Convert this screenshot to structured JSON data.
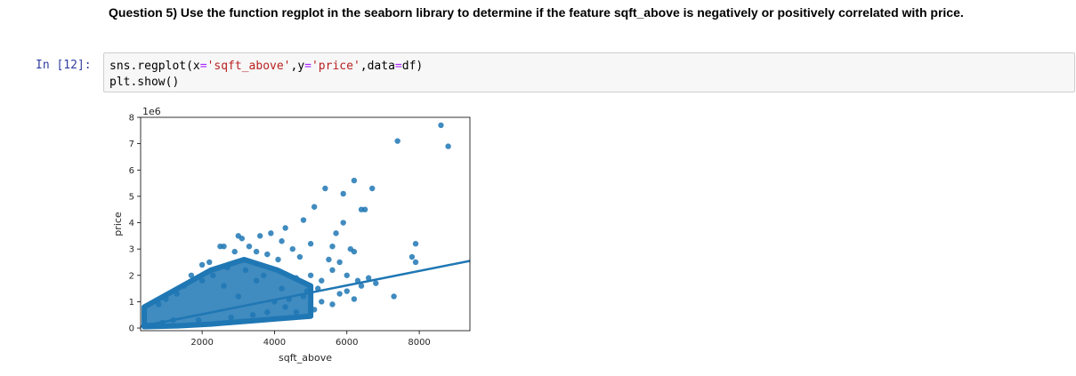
{
  "question": {
    "text": "Question 5) Use the function regplot in the seaborn library to determine if the feature sqft_above is negatively or positively correlated with price."
  },
  "cell": {
    "prompt": "In [12]:",
    "code_line1_parts": [
      "sns.regplot(x",
      "=",
      "'sqft_above'",
      ",y",
      "=",
      "'price'",
      ",data",
      "=",
      "df)"
    ],
    "code_line2": "plt.show()"
  },
  "chart_data": {
    "type": "scatter",
    "xlabel": "sqft_above",
    "ylabel": "price",
    "y_offset_label": "1e6",
    "xlim": [
      300,
      9400
    ],
    "ylim": [
      -0.1,
      8.0
    ],
    "xticks": [
      2000,
      4000,
      6000,
      8000
    ],
    "yticks": [
      0,
      1,
      2,
      3,
      4,
      5,
      6,
      7,
      8
    ],
    "point_color": "#1f77b4",
    "line_color": "#1f77b4",
    "regression_line": {
      "x": [
        300,
        9400
      ],
      "y": [
        0.06,
        2.55
      ]
    },
    "dense_band": {
      "x_start": 400,
      "x_end": 5000,
      "lower_y": [
        0.05,
        0.08,
        0.15,
        0.25,
        0.35,
        0.45
      ],
      "upper_y": [
        0.8,
        1.5,
        2.2,
        2.6,
        2.2,
        1.6
      ]
    },
    "points": [
      [
        8600,
        7.7
      ],
      [
        7400,
        7.1
      ],
      [
        8800,
        6.9
      ],
      [
        6200,
        5.6
      ],
      [
        5400,
        5.3
      ],
      [
        6700,
        5.3
      ],
      [
        5900,
        5.1
      ],
      [
        5100,
        4.6
      ],
      [
        6400,
        4.5
      ],
      [
        6500,
        4.5
      ],
      [
        4800,
        4.1
      ],
      [
        5900,
        4.0
      ],
      [
        4300,
        3.8
      ],
      [
        3900,
        3.6
      ],
      [
        5700,
        3.6
      ],
      [
        3600,
        3.5
      ],
      [
        3000,
        3.5
      ],
      [
        3100,
        3.4
      ],
      [
        4200,
        3.3
      ],
      [
        7900,
        3.2
      ],
      [
        5000,
        3.2
      ],
      [
        5600,
        3.1
      ],
      [
        2500,
        3.1
      ],
      [
        2600,
        3.1
      ],
      [
        4500,
        3.0
      ],
      [
        6100,
        3.0
      ],
      [
        6200,
        2.9
      ],
      [
        3300,
        3.1
      ],
      [
        7800,
        2.7
      ],
      [
        7900,
        2.5
      ],
      [
        5500,
        2.6
      ],
      [
        5800,
        2.5
      ],
      [
        4700,
        2.7
      ],
      [
        3800,
        2.8
      ],
      [
        2900,
        2.9
      ],
      [
        2000,
        2.4
      ],
      [
        2200,
        2.5
      ],
      [
        1700,
        2.0
      ],
      [
        5600,
        2.2
      ],
      [
        6000,
        2.0
      ],
      [
        6300,
        1.8
      ],
      [
        6600,
        1.9
      ],
      [
        6400,
        1.6
      ],
      [
        5300,
        1.8
      ],
      [
        5000,
        2.0
      ],
      [
        4600,
        1.9
      ],
      [
        7300,
        1.2
      ],
      [
        6000,
        1.4
      ],
      [
        5300,
        1.0
      ],
      [
        5600,
        0.9
      ],
      [
        4800,
        1.2
      ],
      [
        4400,
        1.1
      ],
      [
        4000,
        1.0
      ],
      [
        5100,
        0.7
      ],
      [
        4600,
        0.6
      ],
      [
        3800,
        0.6
      ],
      [
        3400,
        0.5
      ],
      [
        2800,
        0.4
      ],
      [
        1900,
        0.3
      ],
      [
        1200,
        0.3
      ],
      [
        900,
        0.2
      ],
      [
        600,
        0.1
      ],
      [
        500,
        0.1
      ],
      [
        4200,
        1.5
      ],
      [
        3700,
        2.0
      ],
      [
        3200,
        2.2
      ],
      [
        2700,
        2.3
      ],
      [
        4100,
        2.6
      ],
      [
        3500,
        2.9
      ],
      [
        2300,
        2.0
      ],
      [
        1500,
        1.6
      ],
      [
        1300,
        1.3
      ],
      [
        1000,
        1.1
      ],
      [
        800,
        0.9
      ],
      [
        4900,
        1.4
      ],
      [
        5200,
        1.5
      ],
      [
        6800,
        1.7
      ],
      [
        5800,
        1.3
      ],
      [
        6200,
        1.1
      ],
      [
        4300,
        0.8
      ],
      [
        3500,
        1.8
      ],
      [
        2000,
        1.8
      ],
      [
        2600,
        1.6
      ],
      [
        3000,
        1.2
      ]
    ]
  }
}
